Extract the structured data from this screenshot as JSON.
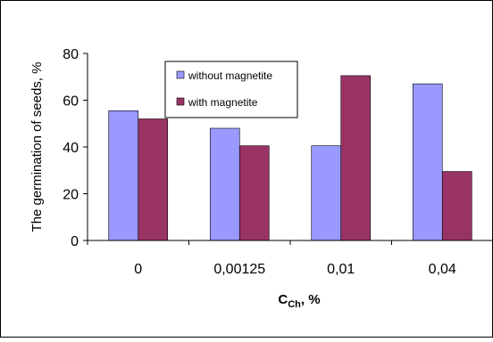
{
  "colors": {
    "without_magnetite": "#9999ff",
    "with_magnetite": "#993366",
    "axis": "#000000",
    "background": "#ffffff"
  },
  "chart_data": {
    "type": "bar",
    "title": "",
    "xlabel_main": "C",
    "xlabel_sub": "Ch",
    "xlabel_suffix": ", %",
    "ylabel": "The germination of seeds, %",
    "categories": [
      "0",
      "0,00125",
      "0,01",
      "0,04"
    ],
    "yticks": [
      "0",
      "20",
      "40",
      "60",
      "80"
    ],
    "ylim": [
      0,
      80
    ],
    "grid": false,
    "legend_position": "top-center",
    "series": [
      {
        "name": "without magnetite",
        "color": "#9999ff",
        "values": [
          55.5,
          48,
          40.5,
          67
        ]
      },
      {
        "name": "with magnetite",
        "color": "#993366",
        "values": [
          52,
          40.5,
          70.5,
          29.5
        ]
      }
    ]
  }
}
